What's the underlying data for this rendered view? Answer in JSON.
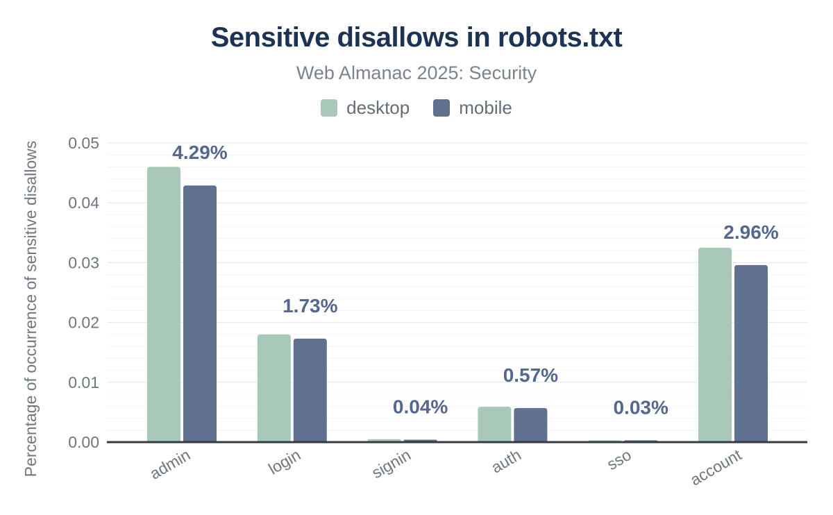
{
  "header": {
    "title": "Sensitive disallows in robots.txt",
    "subtitle": "Web Almanac 2025: Security"
  },
  "colors": {
    "title": "#1d3354",
    "subtitle": "#7b838c",
    "axis_text": "#6e767e",
    "data_label": "#54678f",
    "grid_major": "#e3e5e7",
    "grid_minor": "#f3f4f5",
    "baseline": "#333a40",
    "desktop": "#a8c8b9",
    "mobile": "#5f718e"
  },
  "chart_data": {
    "type": "bar",
    "title": "Sensitive disallows in robots.txt",
    "subtitle": "Web Almanac 2025: Security",
    "categories": [
      "admin",
      "login",
      "signin",
      "auth",
      "sso",
      "account"
    ],
    "series": [
      {
        "name": "desktop",
        "color": "#a8c8b9",
        "values": [
          0.046,
          0.018,
          0.0005,
          0.0059,
          0.0003,
          0.0325
        ]
      },
      {
        "name": "mobile",
        "color": "#5f718e",
        "values": [
          0.0429,
          0.0173,
          0.0004,
          0.0057,
          0.0003,
          0.0296
        ]
      }
    ],
    "data_labels": [
      "4.29%",
      "1.73%",
      "0.04%",
      "0.57%",
      "0.03%",
      "2.96%"
    ],
    "data_labels_refer_to": "mobile",
    "ylabel": "Percentage of occurrence of sensitive disallows",
    "xlabel": "",
    "yticks": [
      "0.00",
      "0.01",
      "0.02",
      "0.03",
      "0.04",
      "0.05"
    ],
    "ylim": [
      0,
      0.05
    ],
    "grid": "horizontal major every 0.01, minor every 0.002",
    "legend_position": "top",
    "x_tick_rotation_deg": -30
  }
}
